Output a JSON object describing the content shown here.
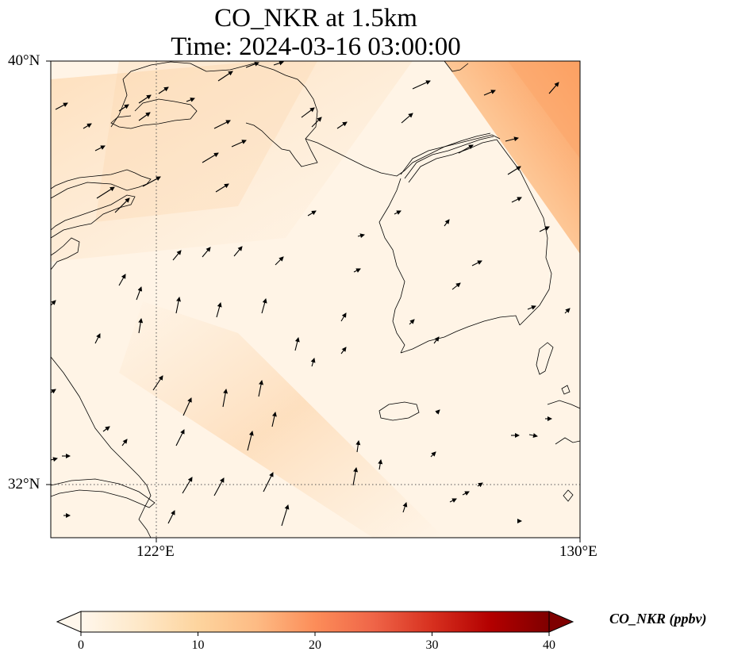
{
  "title_line1": "CO_NKR at 1.5km",
  "title_line2": "Time: 2024-03-16 03:00:00",
  "map": {
    "lon_range": [
      120,
      130
    ],
    "lat_range": [
      31,
      40
    ],
    "lat_ticks": [
      {
        "value": 40,
        "label": "40°N"
      },
      {
        "value": 32,
        "label": "32°N"
      }
    ],
    "lon_ticks": [
      {
        "value": 122,
        "label": "122°E"
      },
      {
        "value": 130,
        "label": "130°E"
      }
    ],
    "gridlines": "dotted"
  },
  "colorbar": {
    "label": "CO_NKR (ppbv)",
    "cmap": "OrRd",
    "extend": "both",
    "range": [
      0,
      40
    ],
    "ticks": [
      {
        "value": 0,
        "label": "0"
      },
      {
        "value": 10,
        "label": "10"
      },
      {
        "value": 20,
        "label": "20"
      },
      {
        "value": 30,
        "label": "30"
      },
      {
        "value": 40,
        "label": "40"
      }
    ]
  },
  "colors": {
    "background_field": "#fff4e6",
    "band_field": "#fde2c2",
    "corner_high": "#fdab6e",
    "coastline": "#000000"
  }
}
